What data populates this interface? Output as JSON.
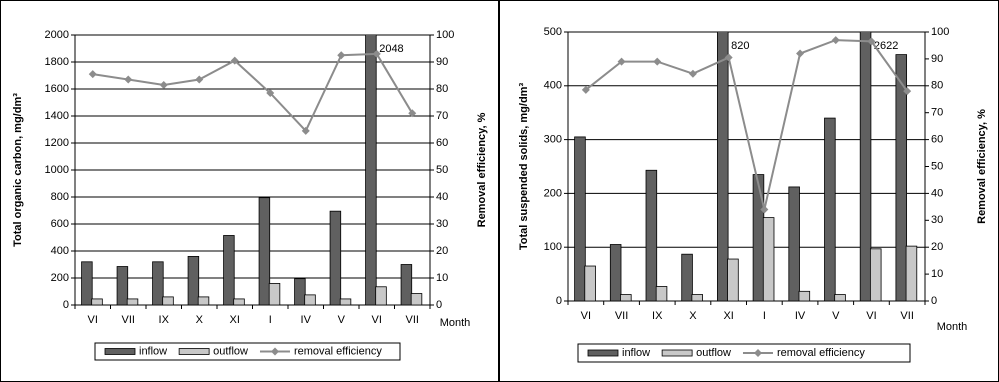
{
  "chart_data": [
    {
      "type": "bar",
      "categories": [
        "VI",
        "VII",
        "IX",
        "X",
        "XI",
        "I",
        "IV",
        "V",
        "VI",
        "VII"
      ],
      "x_label": "Month",
      "y_label": "Total organic carbon, mg/dm³",
      "y2_label": "Removal efficiency, %",
      "ylim": [
        0,
        2000
      ],
      "yticks": [
        0,
        200,
        400,
        600,
        800,
        1000,
        1200,
        1400,
        1600,
        1800,
        2000
      ],
      "y2lim": [
        0,
        100
      ],
      "y2ticks": [
        0,
        10,
        20,
        30,
        40,
        50,
        60,
        70,
        80,
        90,
        100
      ],
      "grid": true,
      "legend": "bottom",
      "series": [
        {
          "name": "inflow",
          "color": "#606060",
          "values": [
            320,
            285,
            320,
            360,
            515,
            795,
            195,
            695,
            2048,
            300
          ],
          "value_labels": [
            null,
            null,
            null,
            null,
            null,
            null,
            null,
            null,
            "2048",
            null
          ]
        },
        {
          "name": "outflow",
          "color": "#c8c8c8",
          "values": [
            45,
            45,
            60,
            60,
            45,
            160,
            75,
            45,
            135,
            85
          ]
        },
        {
          "name": "removal efficiency",
          "color": "#8c8c8c",
          "axis": "y2",
          "type": "line",
          "values": [
            85.5,
            83.5,
            81.5,
            83.5,
            90.5,
            78.5,
            64.5,
            92.5,
            93,
            71
          ]
        }
      ]
    },
    {
      "type": "bar",
      "categories": [
        "VI",
        "VII",
        "IX",
        "X",
        "XI",
        "I",
        "IV",
        "V",
        "VI",
        "VII"
      ],
      "x_label": "Month",
      "y_label": "Total suspended solids, mg/dm³",
      "y2_label": "Removal efficiency, %",
      "ylim": [
        0,
        500
      ],
      "yticks": [
        0,
        100,
        200,
        300,
        400,
        500
      ],
      "y2lim": [
        0,
        100
      ],
      "y2ticks": [
        0,
        10,
        20,
        30,
        40,
        50,
        60,
        70,
        80,
        90,
        100
      ],
      "grid": true,
      "legend": "bottom",
      "series": [
        {
          "name": "inflow",
          "color": "#606060",
          "values": [
            305,
            105,
            243,
            87,
            820,
            235,
            212,
            340,
            2622,
            458
          ],
          "value_labels": [
            null,
            null,
            null,
            null,
            "820",
            null,
            null,
            null,
            "2622",
            null
          ]
        },
        {
          "name": "outflow",
          "color": "#c8c8c8",
          "values": [
            65,
            12,
            27,
            12,
            78,
            155,
            18,
            12,
            97,
            102
          ]
        },
        {
          "name": "removal efficiency",
          "color": "#8c8c8c",
          "axis": "y2",
          "type": "line",
          "values": [
            78.5,
            89,
            89,
            84.5,
            90.5,
            34,
            92,
            97,
            96.5,
            78
          ]
        }
      ]
    }
  ]
}
